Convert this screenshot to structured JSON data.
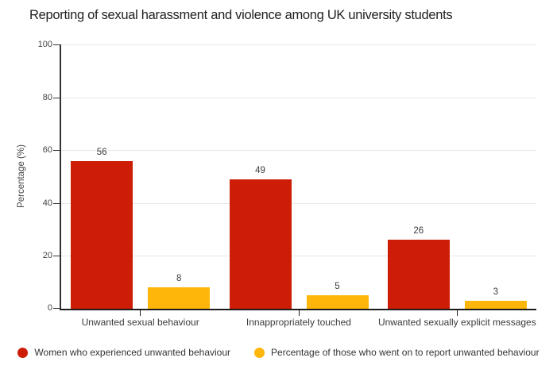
{
  "palette": {
    "series_red": "#cd1d07",
    "series_amber": "#fdb609",
    "gridline": "#e7e7e7",
    "axis": "#333333",
    "text_dark": "#212121",
    "text_muted": "#444444"
  },
  "chart_data": {
    "type": "bar",
    "title": "Reporting of sexual harassment and violence among UK university students",
    "xlabel": "",
    "ylabel": "Percentage (%)",
    "ylim": [
      0,
      100
    ],
    "yticks": [
      0,
      20,
      40,
      60,
      80,
      100
    ],
    "grid": true,
    "legend_position": "bottom",
    "categories": [
      "Unwanted sexual behaviour",
      "Innappropriately touched",
      "Unwanted sexually explicit messages"
    ],
    "series": [
      {
        "name": "Women who experienced unwanted behaviour",
        "color": "#cd1d07",
        "values": [
          56,
          49,
          26
        ]
      },
      {
        "name": "Percentage of those who went on to report unwanted behaviour",
        "color": "#fdb609",
        "values": [
          8,
          5,
          3
        ]
      }
    ]
  }
}
